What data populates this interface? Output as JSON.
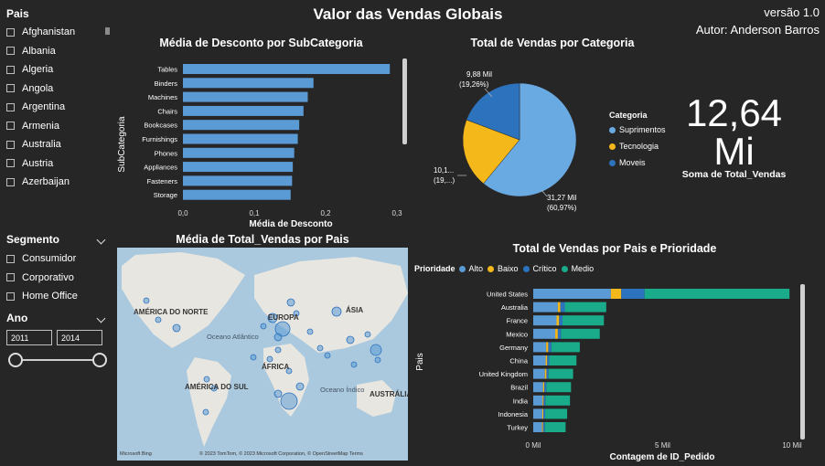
{
  "header": {
    "title": "Valor das Vendas Globais",
    "version": "versão 1.0",
    "author": "Autor: Anderson Barros"
  },
  "country_slicer": {
    "title": "Pais",
    "items": [
      "Afghanistan",
      "Albania",
      "Algeria",
      "Angola",
      "Argentina",
      "Armenia",
      "Australia",
      "Austria",
      "Azerbaijan"
    ]
  },
  "segment_slicer": {
    "title": "Segmento",
    "items": [
      "Consumidor",
      "Corporativo",
      "Home Office"
    ]
  },
  "year_slicer": {
    "title": "Ano",
    "from": "2011",
    "to": "2014"
  },
  "kpi": {
    "value": "12,64",
    "unit": "Mi",
    "label": "Soma de Total_Vendas"
  },
  "colors": {
    "background": "#262626",
    "bar_blue": "#5b9bd5",
    "suprimentos": "#6aaae3",
    "tecnologia": "#f4b81a",
    "moveis": "#2c72bd",
    "alto": "#5b9bd5",
    "baixo": "#f4b81a",
    "critico": "#2c72bd",
    "medio": "#1aab8a",
    "map_water": "#abc9de",
    "map_land": "#e8e6e0"
  },
  "map": {
    "title": "Média de Total_Vendas por Pais",
    "labels": [
      "AMÉRICA DO NORTE",
      "EUROPA",
      "ÁSIA",
      "Oceano Atlântico",
      "ÁFRICA",
      "AMÉRICA DO SUL",
      "Oceano Índico",
      "AUSTRÁLIA"
    ],
    "attribution": "© 2023 TomTom, © 2023 Microsoft Corporation, © OpenStreetMap  Terms",
    "brand": "Microsoft Bing"
  },
  "chart_data": [
    {
      "type": "bar",
      "orientation": "horizontal",
      "title": "Média de Desconto por SubCategoria",
      "xlabel": "Média de Desconto",
      "ylabel": "SubCategoria",
      "categories": [
        "Tables",
        "Binders",
        "Machines",
        "Chairs",
        "Bookcases",
        "Furnishings",
        "Phones",
        "Appliances",
        "Fasteners",
        "Storage"
      ],
      "values": [
        0.29,
        0.183,
        0.175,
        0.169,
        0.163,
        0.161,
        0.156,
        0.154,
        0.153,
        0.151
      ],
      "xlim": [
        0,
        0.3
      ],
      "xticks": [
        "0,0",
        "0,1",
        "0,2",
        "0,3"
      ]
    },
    {
      "type": "pie",
      "title": "Total de Vendas por Categoria",
      "legend_title": "Categoria",
      "legend_position": "right",
      "slices": [
        {
          "name": "Suprimentos",
          "value": 31.27,
          "label": "31,27 Mil",
          "pct": "(60,97%)"
        },
        {
          "name": "Tecnologia",
          "value": 10.14,
          "label": "10,1...",
          "pct": "(19,...)"
        },
        {
          "name": "Moveis",
          "value": 9.88,
          "label": "9,88 Mil",
          "pct": "(19,26%)"
        }
      ]
    },
    {
      "type": "bar",
      "orientation": "horizontal",
      "stacked": true,
      "title": "Total de Vendas por Pais e Prioridade",
      "xlabel": "Contagem de ID_Pedido",
      "ylabel": "Pais",
      "legend_title": "Prioridade",
      "legend_position": "top-left",
      "categories": [
        "United States",
        "Australia",
        "France",
        "Mexico",
        "Germany",
        "China",
        "United Kingdom",
        "Brazil",
        "India",
        "Indonesia",
        "Turkey"
      ],
      "series": [
        {
          "name": "Alto",
          "values": [
            3000,
            950,
            900,
            850,
            500,
            480,
            450,
            380,
            360,
            350,
            340
          ]
        },
        {
          "name": "Baixo",
          "values": [
            400,
            100,
            100,
            100,
            80,
            60,
            60,
            50,
            40,
            40,
            40
          ]
        },
        {
          "name": "Crítico",
          "values": [
            900,
            170,
            130,
            120,
            120,
            80,
            80,
            80,
            70,
            70,
            70
          ]
        },
        {
          "name": "Medio",
          "values": [
            5600,
            1600,
            1600,
            1500,
            1100,
            1050,
            950,
            950,
            950,
            850,
            800
          ]
        }
      ],
      "xlim": [
        0,
        10000
      ],
      "xticks": [
        "0 Mil",
        "5 Mil",
        "10 Mil"
      ]
    }
  ]
}
